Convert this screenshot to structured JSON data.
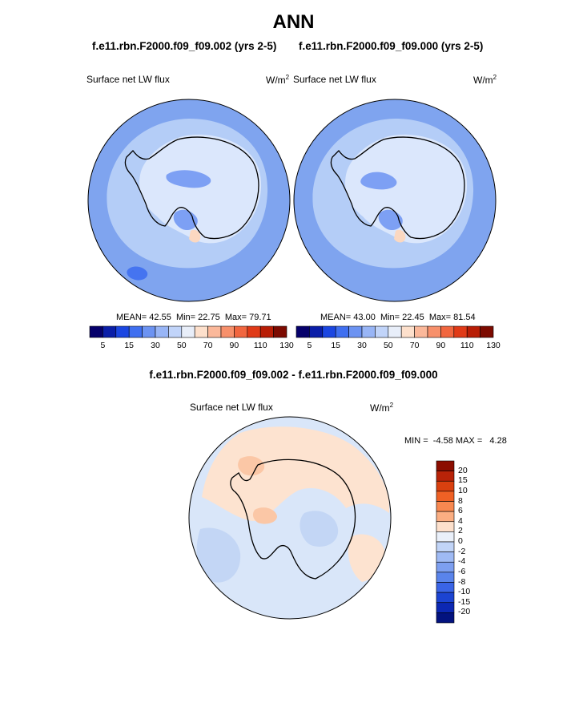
{
  "page": {
    "title": "ANN",
    "case_left": "f.e11.rbn.F2000.f09_f09.002 (yrs 2-5)",
    "case_right": "f.e11.rbn.F2000.f09_f09.000 (yrs 2-5)",
    "diff_title": "f.e11.rbn.F2000.f09_f09.002 - f.e11.rbn.F2000.f09_f09.000"
  },
  "colors": {
    "background": "#ffffff",
    "coastline": "#000000",
    "panel1_ocean": "#7fa4ef",
    "panel1_inner": "#b4cdf7",
    "panel1_ice": "#dbe7fc",
    "panel2_ocean": "#7fa4ef",
    "panel2_inner": "#b4cdf7",
    "panel2_ice": "#dbe7fc",
    "diff_base": "#d9e6f9",
    "diff_warm": "#fde3d0",
    "diff_cool": "#c3d6f5"
  },
  "chart_data": [
    {
      "type": "heatmap",
      "projection": "south-polar-stereographic",
      "variable_label": "Surface net LW flux",
      "units_label": "W/m",
      "units_superscript": "2",
      "stats": {
        "mean_label": "MEAN=",
        "mean": "42.55",
        "min_label": "Min=",
        "min": "22.75",
        "max_label": "Max=",
        "max": "79.71"
      },
      "colorbar_orientation": "horizontal",
      "colorbar_colors": [
        "#05006b",
        "#0a1ea8",
        "#1b46e1",
        "#3f6ff0",
        "#6c93f2",
        "#98b5f6",
        "#c1d4f9",
        "#e8eef9",
        "#fde0cc",
        "#fbb89a",
        "#f7906b",
        "#f1663f",
        "#e03a17",
        "#b81d05",
        "#7c0a00"
      ],
      "colorbar_tick_labels": [
        "5",
        "15",
        "30",
        "50",
        "70",
        "90",
        "110",
        "130"
      ],
      "colorbar_tick_boundaries": [
        1,
        3,
        5,
        7,
        9,
        11,
        13,
        15
      ]
    },
    {
      "type": "heatmap",
      "projection": "south-polar-stereographic",
      "variable_label": "Surface net LW flux",
      "units_label": "W/m",
      "units_superscript": "2",
      "stats": {
        "mean_label": "MEAN=",
        "mean": "43.00",
        "min_label": "Min=",
        "min": "22.45",
        "max_label": "Max=",
        "max": "81.54"
      },
      "colorbar_orientation": "horizontal",
      "colorbar_colors": [
        "#05006b",
        "#0a1ea8",
        "#1b46e1",
        "#3f6ff0",
        "#6c93f2",
        "#98b5f6",
        "#c1d4f9",
        "#e8eef9",
        "#fde0cc",
        "#fbb89a",
        "#f7906b",
        "#f1663f",
        "#e03a17",
        "#b81d05",
        "#7c0a00"
      ],
      "colorbar_tick_labels": [
        "5",
        "15",
        "30",
        "50",
        "70",
        "90",
        "110",
        "130"
      ],
      "colorbar_tick_boundaries": [
        1,
        3,
        5,
        7,
        9,
        11,
        13,
        15
      ]
    },
    {
      "type": "heatmap",
      "projection": "south-polar-stereographic",
      "variable_label": "Surface net LW flux",
      "units_label": "W/m",
      "units_superscript": "2",
      "stats": {
        "min_label": "MIN =",
        "min": "-4.58",
        "max_label": "MAX =",
        "max": "4.28"
      },
      "colorbar_orientation": "vertical",
      "colorbar_colors": [
        "#8b0d00",
        "#b82308",
        "#d9400f",
        "#ef6125",
        "#f88850",
        "#fbae82",
        "#fde0cc",
        "#eaf0fa",
        "#c1d4f7",
        "#9fbaf4",
        "#7d9ff0",
        "#5a84eb",
        "#3a64e6",
        "#1c44d2",
        "#0c28b3",
        "#03137f"
      ],
      "colorbar_tick_labels": [
        "20",
        "15",
        "10",
        "8",
        "6",
        "4",
        "2",
        "0",
        "-2",
        "-4",
        "-6",
        "-8",
        "-10",
        "-15",
        "-20"
      ]
    }
  ]
}
